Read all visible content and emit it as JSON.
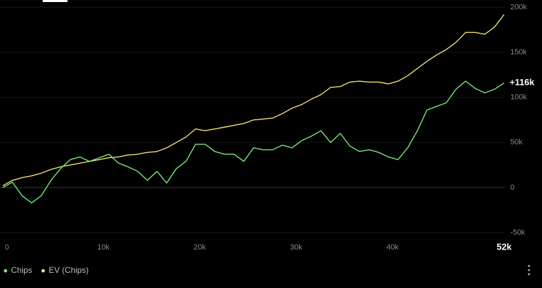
{
  "chart_data": {
    "type": "line",
    "x": [
      0,
      1000,
      2000,
      3000,
      4000,
      5000,
      6000,
      7000,
      8000,
      9000,
      10000,
      11000,
      12000,
      13000,
      14000,
      15000,
      16000,
      17000,
      18000,
      19000,
      20000,
      21000,
      22000,
      23000,
      24000,
      25000,
      26000,
      27000,
      28000,
      29000,
      30000,
      31000,
      32000,
      33000,
      34000,
      35000,
      36000,
      37000,
      38000,
      39000,
      40000,
      41000,
      42000,
      43000,
      44000,
      45000,
      46000,
      47000,
      48000,
      49000,
      50000,
      51000,
      52000
    ],
    "series": [
      {
        "name": "Chips",
        "color": "#7ee87e",
        "end_label": "+116k",
        "values": [
          0,
          6000,
          -9000,
          -17000,
          -9000,
          8000,
          21000,
          31000,
          34000,
          29000,
          33000,
          37000,
          27000,
          23000,
          18000,
          8000,
          18000,
          5000,
          21000,
          29000,
          48000,
          48000,
          40000,
          37000,
          37000,
          29000,
          44000,
          42000,
          42000,
          47000,
          44000,
          52000,
          57000,
          63000,
          50000,
          60000,
          46000,
          40000,
          42000,
          39000,
          34000,
          31000,
          44000,
          63000,
          86000,
          90000,
          94000,
          109000,
          118000,
          110000,
          105000,
          109000,
          116000
        ]
      },
      {
        "name": "EV (Chips)",
        "color": "#f3e36a",
        "values": [
          2000,
          8000,
          11000,
          13000,
          16000,
          20000,
          23000,
          25000,
          27000,
          29000,
          31000,
          33000,
          34000,
          36000,
          37000,
          39000,
          40000,
          44000,
          50000,
          56000,
          65000,
          63000,
          65000,
          67000,
          69000,
          71000,
          75000,
          76000,
          77000,
          82000,
          88000,
          92000,
          98000,
          103000,
          111000,
          112000,
          117000,
          118000,
          117000,
          117000,
          115000,
          118000,
          124000,
          132000,
          140000,
          147000,
          153000,
          161000,
          172000,
          172000,
          170000,
          178000,
          192000
        ]
      }
    ],
    "xlim": [
      0,
      52000
    ],
    "xticks": [
      0,
      {
        "value": 10000,
        "label": "10k"
      },
      {
        "value": 20000,
        "label": "20k"
      },
      {
        "value": 30000,
        "label": "30k"
      },
      {
        "value": 40000,
        "label": "40k"
      },
      {
        "value": 52000,
        "label": "52k"
      }
    ],
    "ylim": [
      -55000,
      208000
    ],
    "yticks": [
      {
        "value": -50000,
        "label": "-50k"
      },
      0,
      {
        "value": 50000,
        "label": "50k"
      },
      {
        "value": 100000,
        "label": "100k"
      },
      {
        "value": 150000,
        "label": "150k"
      },
      {
        "value": 200000,
        "label": "200k"
      }
    ],
    "grid": true
  }
}
